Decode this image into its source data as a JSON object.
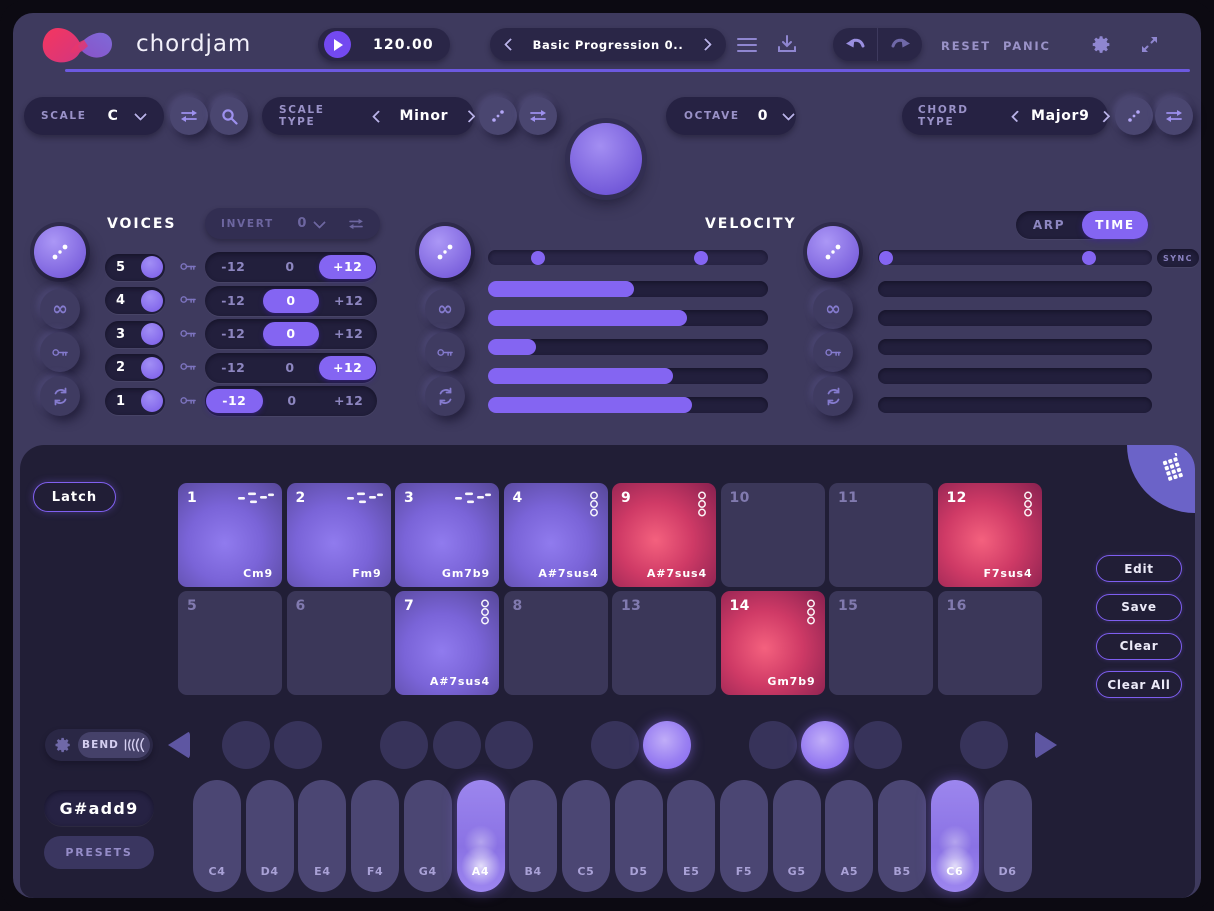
{
  "header": {
    "app_name": "chordjam",
    "tempo": "120.00",
    "preset": "Basic Progression 0..",
    "reset_label": "RESET",
    "panic_label": "PANIC"
  },
  "controls": {
    "scale": {
      "label": "SCALE",
      "value": "C"
    },
    "scale_type": {
      "label": "SCALE TYPE",
      "value": "Minor"
    },
    "octave": {
      "label": "OCTAVE",
      "value": "0"
    },
    "chord_type": {
      "label": "CHORD TYPE",
      "value": "Major9"
    }
  },
  "voices": {
    "title": "VOICES",
    "invert_label": "INVERT",
    "invert_value": "0",
    "options": [
      "-12",
      "0",
      "+12"
    ],
    "rows": [
      {
        "number": "5",
        "transpose": "+12"
      },
      {
        "number": "4",
        "transpose": "0"
      },
      {
        "number": "3",
        "transpose": "0"
      },
      {
        "number": "2",
        "transpose": "+12"
      },
      {
        "number": "1",
        "transpose": "-12"
      }
    ]
  },
  "velocity": {
    "title": "VELOCITY",
    "range_handles_pct": [
      18,
      76
    ],
    "bars_pct": [
      52,
      71,
      17,
      66,
      73
    ]
  },
  "time": {
    "arp_label": "ARP",
    "time_label": "TIME",
    "selected": "TIME",
    "sync_label": "SYNC",
    "range_handles_pct": [
      3,
      77
    ],
    "bars_pct": [
      0,
      0,
      0,
      0,
      0
    ]
  },
  "pads": {
    "latch_label": "Latch",
    "side_buttons": [
      "Edit",
      "Save",
      "Clear",
      "Clear All"
    ],
    "cells": [
      {
        "num": "1",
        "chord": "Cm9",
        "state": "purple",
        "icon": "steps"
      },
      {
        "num": "2",
        "chord": "Fm9",
        "state": "purple",
        "icon": "steps"
      },
      {
        "num": "3",
        "chord": "Gm7b9",
        "state": "purple",
        "icon": "steps"
      },
      {
        "num": "4",
        "chord": "A#7sus4",
        "state": "purple",
        "icon": "rings"
      },
      {
        "num": "9",
        "chord": "A#7sus4",
        "state": "red",
        "icon": "rings"
      },
      {
        "num": "10",
        "chord": "",
        "state": "empty",
        "icon": ""
      },
      {
        "num": "11",
        "chord": "",
        "state": "empty",
        "icon": ""
      },
      {
        "num": "12",
        "chord": "F7sus4",
        "state": "red",
        "icon": "rings"
      },
      {
        "num": "5",
        "chord": "",
        "state": "empty",
        "icon": ""
      },
      {
        "num": "6",
        "chord": "",
        "state": "empty",
        "icon": ""
      },
      {
        "num": "7",
        "chord": "A#7sus4",
        "state": "purple",
        "icon": "rings"
      },
      {
        "num": "8",
        "chord": "",
        "state": "empty",
        "icon": ""
      },
      {
        "num": "13",
        "chord": "",
        "state": "empty",
        "icon": ""
      },
      {
        "num": "14",
        "chord": "Gm7b9",
        "state": "red",
        "icon": "rings"
      },
      {
        "num": "15",
        "chord": "",
        "state": "empty",
        "icon": ""
      },
      {
        "num": "16",
        "chord": "",
        "state": "empty",
        "icon": ""
      }
    ]
  },
  "keyboard": {
    "bend_label": "BEND",
    "chord_display": "G#add9",
    "presets_label": "PRESETS",
    "white_keys": [
      {
        "label": "C4",
        "active": false
      },
      {
        "label": "D4",
        "active": false
      },
      {
        "label": "E4",
        "active": false
      },
      {
        "label": "F4",
        "active": false
      },
      {
        "label": "G4",
        "active": false
      },
      {
        "label": "A4",
        "active": true
      },
      {
        "label": "B4",
        "active": false
      },
      {
        "label": "C5",
        "active": false
      },
      {
        "label": "D5",
        "active": false
      },
      {
        "label": "E5",
        "active": false
      },
      {
        "label": "F5",
        "active": false
      },
      {
        "label": "G5",
        "active": false
      },
      {
        "label": "A5",
        "active": false
      },
      {
        "label": "B5",
        "active": false
      },
      {
        "label": "C6",
        "active": true
      },
      {
        "label": "D6",
        "active": false
      }
    ],
    "black_keys": [
      {
        "note": "C#4",
        "active": false
      },
      {
        "note": "D#4",
        "active": false
      },
      {
        "note": "F#4",
        "active": false
      },
      {
        "note": "G#4",
        "active": false
      },
      {
        "note": "A#4",
        "active": false
      },
      {
        "note": "C#5",
        "active": false
      },
      {
        "note": "D#5",
        "active": true
      },
      {
        "note": "F#5",
        "active": false
      },
      {
        "note": "G#5",
        "active": true
      },
      {
        "note": "A#5",
        "active": false
      },
      {
        "note": "C#6",
        "active": false
      }
    ]
  },
  "colors": {
    "accent": "#8465f2",
    "background": "#3e3a5e",
    "panel": "#211e36",
    "red_pad": "#cf3a66"
  }
}
